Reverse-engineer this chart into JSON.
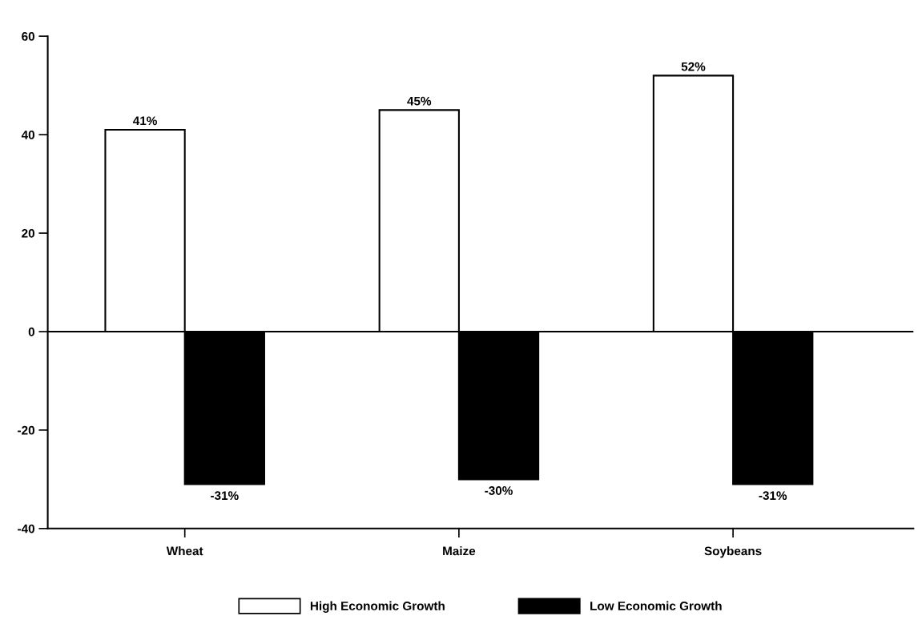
{
  "chart_data": {
    "type": "bar",
    "categories": [
      "Wheat",
      "Maize",
      "Soybeans"
    ],
    "series": [
      {
        "name": "High Economic Growth",
        "color": "#ffffff",
        "values": [
          41,
          45,
          52
        ],
        "value_labels": [
          "41%",
          "45%",
          "52%"
        ]
      },
      {
        "name": "Low Economic Growth",
        "color": "#000000",
        "values": [
          -31,
          -30,
          -31
        ],
        "value_labels": [
          "-31%",
          "-30%",
          "-31%"
        ]
      }
    ],
    "ylim": [
      -40,
      60
    ],
    "yticks": [
      -40,
      -20,
      0,
      20,
      40,
      60
    ],
    "ref_lines": [
      {
        "axis": "y",
        "value": 0,
        "color": "#000000"
      }
    ],
    "grid": false,
    "legend": "bottom"
  }
}
